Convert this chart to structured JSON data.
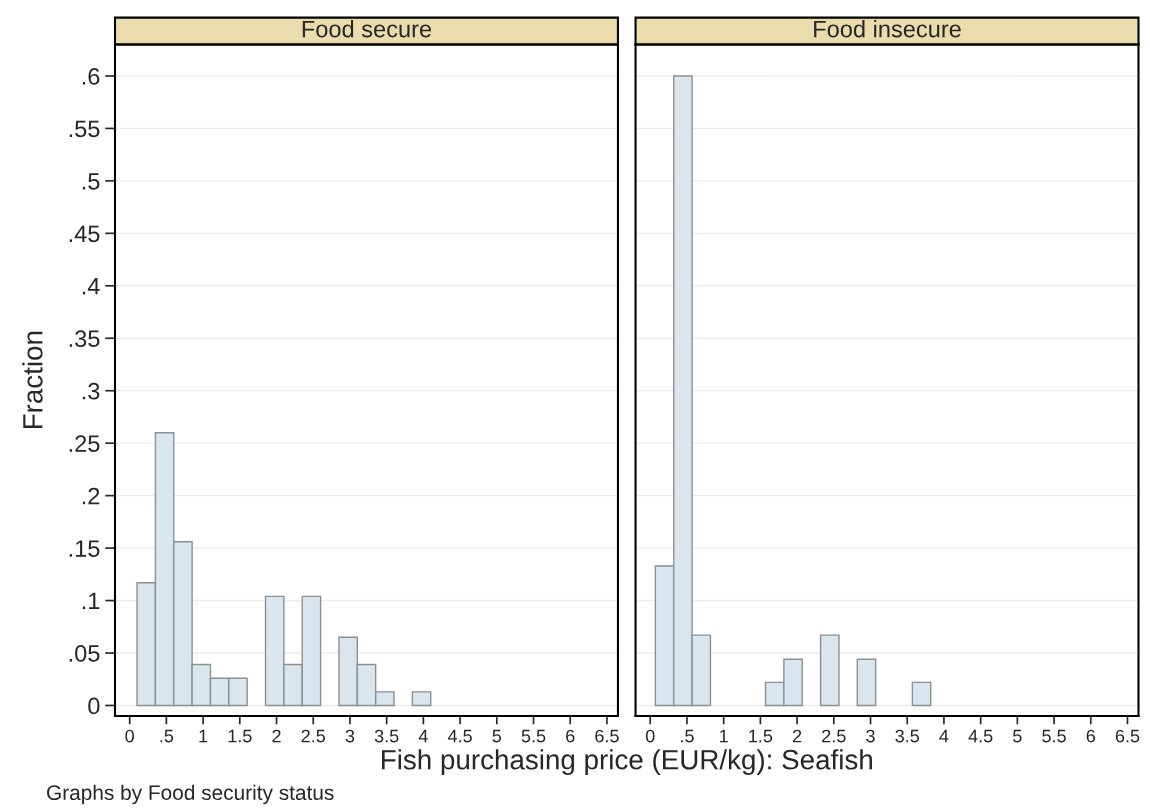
{
  "chart_data": [
    {
      "type": "histogram",
      "title": "Food secure",
      "ylabel": "Fraction",
      "xlabel": "Fish purchasing price (EUR/kg): Seafish",
      "annotations": [
        "Graphs by Food security status"
      ],
      "bins": [
        0.1,
        0.35,
        0.6,
        0.85,
        1.1,
        1.35,
        1.6,
        1.85,
        2.1,
        2.35,
        2.6,
        2.85,
        3.1,
        3.35,
        3.6,
        3.85,
        4.1
      ],
      "values": [
        0.117,
        0.26,
        0.156,
        0.039,
        0.026,
        0.026,
        0,
        0.104,
        0.039,
        0.104,
        0,
        0.065,
        0.039,
        0.013,
        0,
        0.013
      ],
      "color": "#d9e6ee",
      "grid": "y",
      "xlim": [
        -0.2,
        6.65
      ],
      "ylim": [
        -0.01,
        0.63
      ],
      "xticks": [
        0,
        {
          "value": 0.5,
          "label": ".5"
        },
        1,
        1.5,
        2,
        2.5,
        3,
        3.5,
        4,
        4.5,
        5,
        5.5,
        6,
        6.5
      ],
      "yticks": [
        0,
        {
          "value": 0.05,
          "label": ".05"
        },
        {
          "value": 0.1,
          "label": ".1"
        },
        {
          "value": 0.15,
          "label": ".15"
        },
        {
          "value": 0.2,
          "label": ".2"
        },
        {
          "value": 0.25,
          "label": ".25"
        },
        {
          "value": 0.3,
          "label": ".3"
        },
        {
          "value": 0.35,
          "label": ".35"
        },
        {
          "value": 0.4,
          "label": ".4"
        },
        {
          "value": 0.45,
          "label": ".45"
        },
        {
          "value": 0.5,
          "label": ".5"
        },
        {
          "value": 0.55,
          "label": ".55"
        },
        {
          "value": 0.6,
          "label": ".6"
        }
      ]
    },
    {
      "type": "histogram",
      "title": "Food insecure",
      "tick_labels": "x",
      "bins": [
        0.07,
        0.32,
        0.57,
        0.82,
        1.07,
        1.32,
        1.57,
        1.82,
        2.07,
        2.32,
        2.57,
        2.82,
        3.07,
        3.32,
        3.57,
        3.82
      ],
      "values": [
        0.133,
        0.6,
        0.067,
        0,
        0,
        0,
        0.022,
        0.044,
        0,
        0.067,
        0,
        0.044,
        0,
        0,
        0.022
      ],
      "color": "#d9e6ee",
      "grid": "y",
      "xlim": [
        -0.2,
        6.65
      ],
      "ylim": [
        -0.01,
        0.63
      ],
      "xticks": [
        0,
        {
          "value": 0.5,
          "label": ".5"
        },
        1,
        1.5,
        2,
        2.5,
        3,
        3.5,
        4,
        4.5,
        5,
        5.5,
        6,
        6.5
      ],
      "yticks": [
        0,
        0.05,
        0.1,
        0.15,
        0.2,
        0.25,
        0.3,
        0.35,
        0.4,
        0.45,
        0.5,
        0.55,
        0.6
      ]
    }
  ]
}
